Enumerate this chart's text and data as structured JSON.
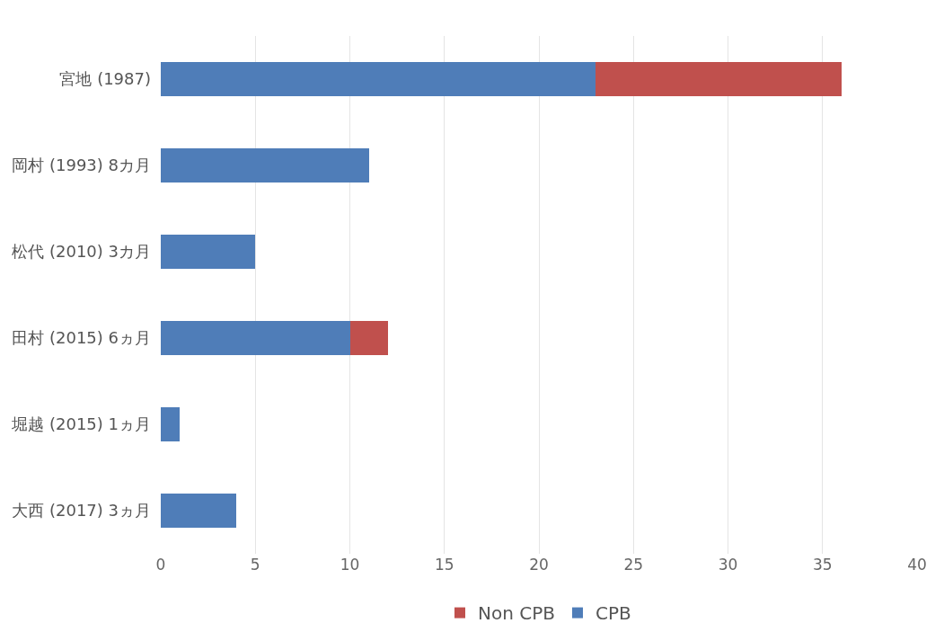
{
  "chart_data": {
    "type": "bar",
    "orientation": "horizontal",
    "stacked": true,
    "categories": [
      "宮地 (1987)",
      "岡村 (1993) 8カ月",
      "松代 (2010) 3カ月",
      "田村 (2015) 6ヵ月",
      "堀越 (2015) 1ヵ月",
      "大西 (2017) 3ヵ月"
    ],
    "series": [
      {
        "name": "CPB",
        "color": "#4f7db8",
        "values": [
          23,
          11,
          5,
          10,
          1,
          4
        ]
      },
      {
        "name": "Non CPB",
        "color": "#c0504d",
        "values": [
          13,
          0,
          0,
          2,
          0,
          0
        ]
      }
    ],
    "xlim": [
      0,
      40
    ],
    "xticks": [
      0,
      5,
      10,
      15,
      20,
      25,
      30,
      35,
      40
    ],
    "grid": "x",
    "legend": "bottom"
  }
}
